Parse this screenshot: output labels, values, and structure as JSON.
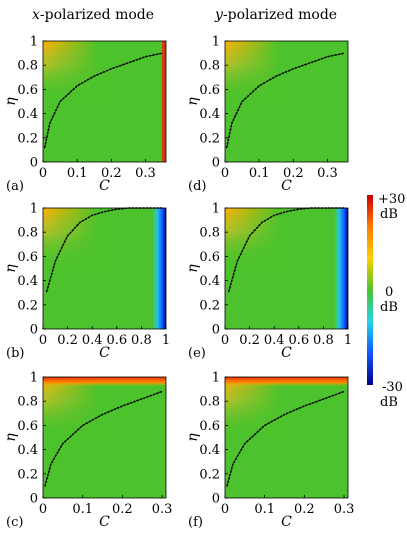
{
  "column_titles": {
    "left": {
      "var": "x",
      "text": "-polarized mode"
    },
    "right": {
      "var": "y",
      "text": "-polarized mode"
    }
  },
  "colorbar": {
    "top_label": "+30",
    "top_unit": "dB",
    "mid_label": "0",
    "mid_unit": "dB",
    "bottom_label": "-30",
    "bottom_unit": "dB",
    "colors": [
      "#cc0000",
      "#ff7a00",
      "#ffd000",
      "#4cc32c",
      "#22d6e6",
      "#1155ff",
      "#000088"
    ]
  },
  "chart_data": [
    {
      "type": "heatmap",
      "panel": "(a)",
      "row": 0,
      "col": 0,
      "xlabel": "C",
      "ylabel": "η",
      "xlim": [
        0,
        0.36
      ],
      "ylim": [
        0,
        1
      ],
      "xticks": [
        "0",
        "0.1",
        "0.2",
        "0.3"
      ],
      "yticks": [
        "0",
        "0.2",
        "0.4",
        "0.6",
        "0.8",
        "1"
      ],
      "edge": "right",
      "edge_color": "#cc3300",
      "curve": {
        "x": [
          0.005,
          0.02,
          0.05,
          0.1,
          0.15,
          0.2,
          0.25,
          0.3,
          0.35
        ],
        "y": [
          0.12,
          0.32,
          0.5,
          0.63,
          0.71,
          0.77,
          0.82,
          0.87,
          0.9
        ]
      }
    },
    {
      "type": "heatmap",
      "panel": "(d)",
      "row": 0,
      "col": 1,
      "xlabel": "C",
      "ylabel": "η",
      "xlim": [
        0,
        0.36
      ],
      "ylim": [
        0,
        1
      ],
      "xticks": [
        "0",
        "0.1",
        "0.2",
        "0.3"
      ],
      "yticks": [
        "0",
        "0.2",
        "0.4",
        "0.6",
        "0.8",
        "1"
      ],
      "edge": "none",
      "edge_color": "",
      "curve": {
        "x": [
          0.005,
          0.02,
          0.05,
          0.1,
          0.15,
          0.2,
          0.25,
          0.3,
          0.35
        ],
        "y": [
          0.12,
          0.32,
          0.5,
          0.63,
          0.71,
          0.77,
          0.82,
          0.87,
          0.9
        ]
      }
    },
    {
      "type": "heatmap",
      "panel": "(b)",
      "row": 1,
      "col": 0,
      "xlabel": "C",
      "ylabel": "η",
      "xlim": [
        0,
        1
      ],
      "ylim": [
        0,
        1
      ],
      "xticks": [
        "0",
        "0.2",
        "0.4",
        "0.6",
        "0.8",
        "1"
      ],
      "yticks": [
        "0",
        "0.2",
        "0.4",
        "0.6",
        "0.8",
        "1"
      ],
      "edge": "right",
      "edge_color": "#1133dd",
      "curve": {
        "x": [
          0.03,
          0.1,
          0.2,
          0.3,
          0.4,
          0.5,
          0.6,
          0.7,
          0.8,
          0.9,
          0.97
        ],
        "y": [
          0.31,
          0.56,
          0.77,
          0.88,
          0.94,
          0.97,
          0.99,
          1.0,
          1.0,
          1.0,
          1.0
        ]
      }
    },
    {
      "type": "heatmap",
      "panel": "(e)",
      "row": 1,
      "col": 1,
      "xlabel": "C",
      "ylabel": "η",
      "xlim": [
        0,
        1
      ],
      "ylim": [
        0,
        1
      ],
      "xticks": [
        "0",
        "0.2",
        "0.4",
        "0.6",
        "0.8",
        "1"
      ],
      "yticks": [
        "0",
        "0.2",
        "0.4",
        "0.6",
        "0.8",
        "1"
      ],
      "edge": "right",
      "edge_color": "#1133dd",
      "curve": {
        "x": [
          0.03,
          0.1,
          0.2,
          0.3,
          0.4,
          0.5,
          0.6,
          0.7,
          0.8,
          0.9,
          0.97
        ],
        "y": [
          0.31,
          0.56,
          0.77,
          0.88,
          0.94,
          0.97,
          0.99,
          1.0,
          1.0,
          1.0,
          1.0
        ]
      }
    },
    {
      "type": "heatmap",
      "panel": "(c)",
      "row": 2,
      "col": 0,
      "xlabel": "C",
      "ylabel": "η",
      "xlim": [
        0,
        0.31
      ],
      "ylim": [
        0,
        1
      ],
      "xticks": [
        "0",
        "0.1",
        "0.2",
        "0.3"
      ],
      "yticks": [
        "0",
        "0.2",
        "0.4",
        "0.6",
        "0.8",
        "1"
      ],
      "edge": "top",
      "edge_color": "#ee4400",
      "curve": {
        "x": [
          0.005,
          0.02,
          0.05,
          0.1,
          0.15,
          0.2,
          0.25,
          0.3
        ],
        "y": [
          0.1,
          0.28,
          0.45,
          0.6,
          0.69,
          0.76,
          0.82,
          0.88
        ]
      }
    },
    {
      "type": "heatmap",
      "panel": "(f)",
      "row": 2,
      "col": 1,
      "xlabel": "C",
      "ylabel": "η",
      "xlim": [
        0,
        0.31
      ],
      "ylim": [
        0,
        1
      ],
      "xticks": [
        "0",
        "0.1",
        "0.2",
        "0.3"
      ],
      "yticks": [
        "0",
        "0.2",
        "0.4",
        "0.6",
        "0.8",
        "1"
      ],
      "edge": "top",
      "edge_color": "#ee4400",
      "curve": {
        "x": [
          0.005,
          0.02,
          0.05,
          0.1,
          0.15,
          0.2,
          0.25,
          0.3
        ],
        "y": [
          0.1,
          0.28,
          0.45,
          0.6,
          0.69,
          0.76,
          0.82,
          0.88
        ]
      }
    }
  ]
}
